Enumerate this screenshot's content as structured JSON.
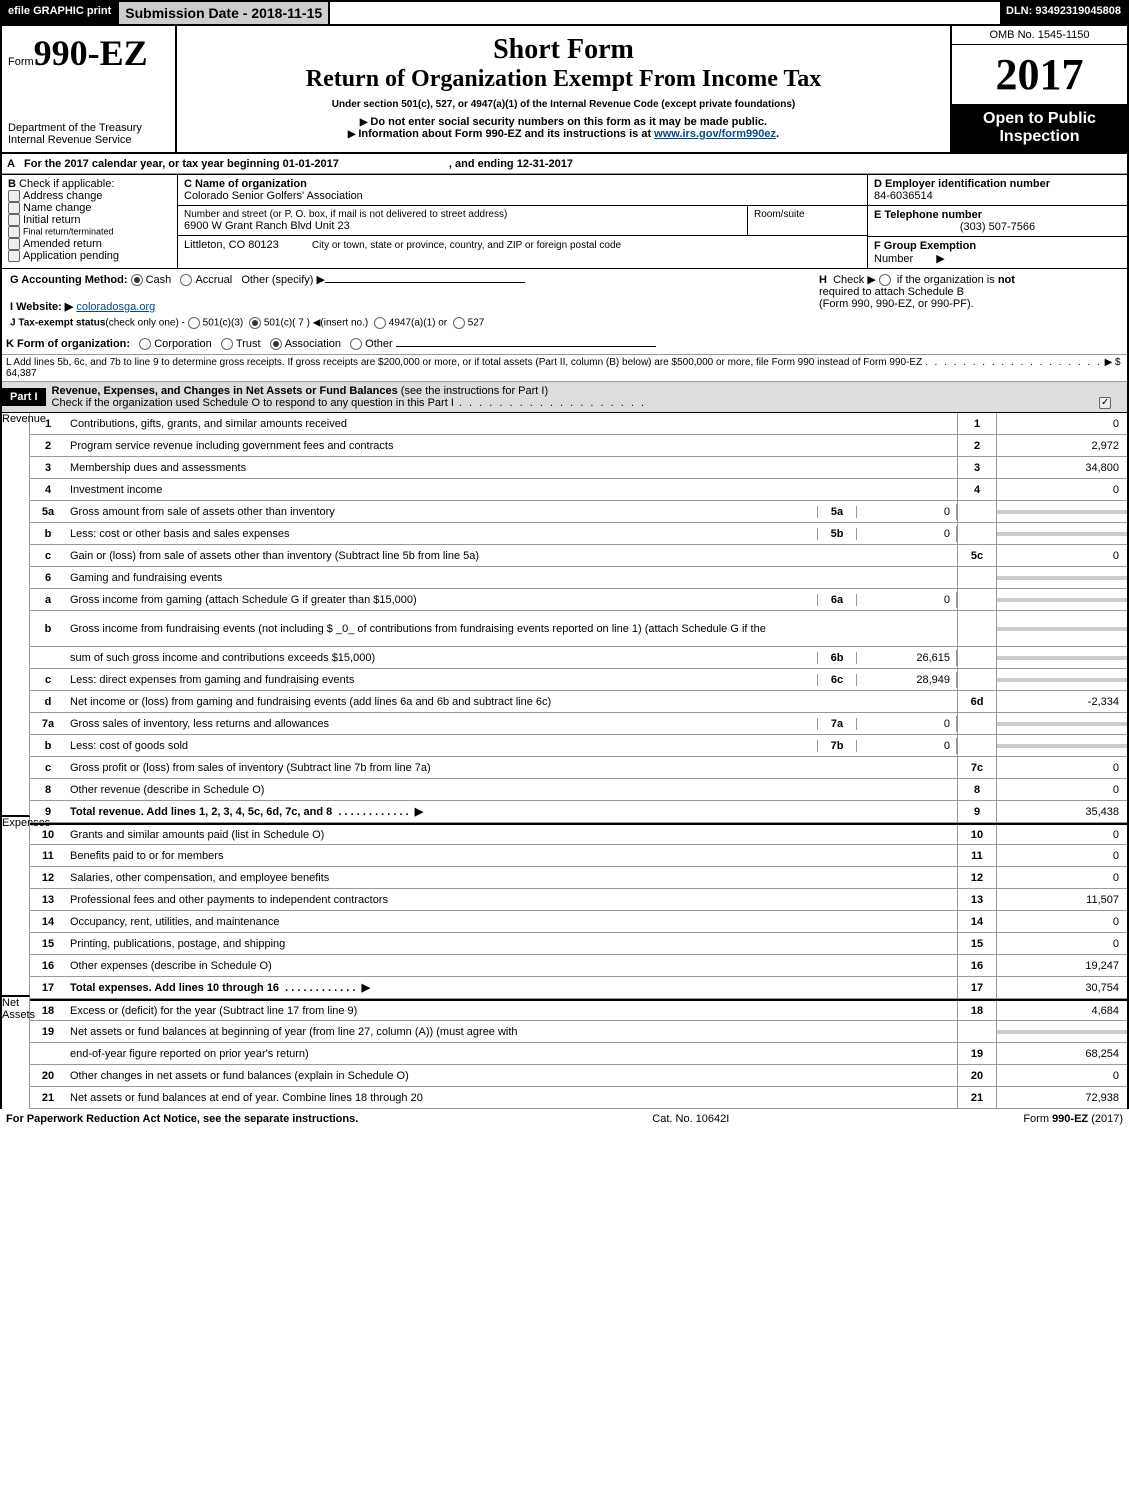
{
  "topbar": {
    "efile": "efile GRAPHIC print",
    "subdate": "Submission Date - 2018-11-15",
    "dln": "DLN: 93492319045808"
  },
  "header": {
    "form_prefix": "Form",
    "form_no": "990-EZ",
    "dept": "Department of the Treasury",
    "irs": "Internal Revenue Service",
    "short": "Short Form",
    "title": "Return of Organization Exempt From Income Tax",
    "sub1": "Under section 501(c), 527, or 4947(a)(1) of the Internal Revenue Code (except private foundations)",
    "sub2": "Do not enter social security numbers on this form as it may be made public.",
    "sub3": "Information about Form 990-EZ and its instructions is at ",
    "sub3_link": "www.irs.gov/form990ez",
    "omb": "OMB No. 1545-1150",
    "year": "2017",
    "open1": "Open to Public",
    "open2": "Inspection"
  },
  "A": {
    "txt": "For the 2017 calendar year, or tax year beginning 01-01-2017",
    "end": ", and ending 12-31-2017"
  },
  "B": {
    "label": "Check if applicable:",
    "opts": [
      "Address change",
      "Name change",
      "Initial return",
      "Final return/terminated",
      "Amended return",
      "Application pending"
    ]
  },
  "C": {
    "label": "C Name of organization",
    "name": "Colorado Senior Golfers' Association",
    "street_lbl": "Number and street (or P. O. box, if mail is not delivered to street address)",
    "street": "6900 W Grant Ranch Blvd Unit 23",
    "room": "Room/suite",
    "city_lbl": "City or town, state or province, country, and ZIP or foreign postal code",
    "city": "Littleton, CO   80123"
  },
  "D": {
    "label": "D Employer identification number",
    "val": "84-6036514"
  },
  "E": {
    "label": "E Telephone number",
    "val": "(303) 507-7566"
  },
  "F": {
    "label": "F Group Exemption",
    "label2": "Number",
    "arrow": "▶"
  },
  "G": {
    "label": "G Accounting Method:",
    "opts": [
      "Cash",
      "Accrual"
    ],
    "other": "Other (specify) ▶"
  },
  "H": {
    "txt1": "Check ▶",
    "txt2": "if the organization is",
    "not": "not",
    "txt3": "required to attach Schedule B",
    "txt4": "(Form 990, 990-EZ, or 990-PF)."
  },
  "I": {
    "label": "I Website: ▶",
    "val": "coloradosga.org"
  },
  "J": {
    "label": "J Tax-exempt status",
    "sub": "(check only one) -",
    "o1": "501(c)(3)",
    "o2": "501(c)( 7 )",
    "ins": "◀(insert no.)",
    "o3": "4947(a)(1) or",
    "o4": "527"
  },
  "K": {
    "label": "K Form of organization:",
    "opts": [
      "Corporation",
      "Trust",
      "Association",
      "Other"
    ]
  },
  "L": {
    "txt": "L Add lines 5b, 6c, and 7b to line 9 to determine gross receipts. If gross receipts are $200,000 or more, or if total assets (Part II, column (B) below) are $500,000 or more, file Form 990 instead of Form 990-EZ",
    "val": "▶ $ 64,387"
  },
  "part1": {
    "hdr": "Part I",
    "title": "Revenue, Expenses, and Changes in Net Assets or Fund Balances",
    "note": "(see the instructions for Part I)",
    "check": "Check if the organization used Schedule O to respond to any question in this Part I"
  },
  "sidelabels": {
    "rev": "Revenue",
    "exp": "Expenses",
    "net": "Net Assets"
  },
  "lines": [
    {
      "n": "1",
      "t": "Contributions, gifts, grants, and similar amounts received",
      "bn": "1",
      "bv": "0"
    },
    {
      "n": "2",
      "t": "Program service revenue including government fees and contracts",
      "bn": "2",
      "bv": "2,972"
    },
    {
      "n": "3",
      "t": "Membership dues and assessments",
      "bn": "3",
      "bv": "34,800"
    },
    {
      "n": "4",
      "t": "Investment income",
      "bn": "4",
      "bv": "0"
    },
    {
      "n": "5a",
      "t": "Gross amount from sale of assets other than inventory",
      "sc": "5a",
      "sv": "0",
      "grey": true
    },
    {
      "n": "b",
      "t": "Less: cost or other basis and sales expenses",
      "sc": "5b",
      "sv": "0",
      "grey": true
    },
    {
      "n": "c",
      "t": "Gain or (loss) from sale of assets other than inventory (Subtract line 5b from line 5a)",
      "bn": "5c",
      "bv": "0"
    },
    {
      "n": "6",
      "t": "Gaming and fundraising events",
      "grey": true,
      "noval": true
    },
    {
      "n": "a",
      "t": "Gross income from gaming (attach Schedule G if greater than $15,000)",
      "sc": "6a",
      "sv": "0",
      "grey": true
    },
    {
      "n": "b",
      "t": "Gross income from fundraising events (not including $ _0_            of contributions from fundraising events reported on line 1) (attach Schedule G if the",
      "grey": true,
      "noval": true,
      "tall": true
    },
    {
      "n": "",
      "t": "sum of such gross income and contributions exceeds $15,000)",
      "sc": "6b",
      "sv": "26,615",
      "grey": true
    },
    {
      "n": "c",
      "t": "Less: direct expenses from gaming and fundraising events",
      "sc": "6c",
      "sv": "28,949",
      "grey": true
    },
    {
      "n": "d",
      "t": "Net income or (loss) from gaming and fundraising events (add lines 6a and 6b and subtract line 6c)",
      "bn": "6d",
      "bv": "-2,334"
    },
    {
      "n": "7a",
      "t": "Gross sales of inventory, less returns and allowances",
      "sc": "7a",
      "sv": "0",
      "grey": true
    },
    {
      "n": "b",
      "t": "Less: cost of goods sold",
      "sc": "7b",
      "sv": "0",
      "grey": true
    },
    {
      "n": "c",
      "t": "Gross profit or (loss) from sales of inventory (Subtract line 7b from line 7a)",
      "bn": "7c",
      "bv": "0"
    },
    {
      "n": "8",
      "t": "Other revenue (describe in Schedule O)",
      "bn": "8",
      "bv": "0"
    },
    {
      "n": "9",
      "t": "Total revenue. Add lines 1, 2, 3, 4, 5c, 6d, 7c, and 8",
      "bn": "9",
      "bv": "35,438",
      "bold": true,
      "arrow": true
    },
    {
      "n": "10",
      "t": "Grants and similar amounts paid (list in Schedule O)",
      "bn": "10",
      "bv": "0",
      "sec": "exp"
    },
    {
      "n": "11",
      "t": "Benefits paid to or for members",
      "bn": "11",
      "bv": "0"
    },
    {
      "n": "12",
      "t": "Salaries, other compensation, and employee benefits",
      "bn": "12",
      "bv": "0"
    },
    {
      "n": "13",
      "t": "Professional fees and other payments to independent contractors",
      "bn": "13",
      "bv": "11,507"
    },
    {
      "n": "14",
      "t": "Occupancy, rent, utilities, and maintenance",
      "bn": "14",
      "bv": "0"
    },
    {
      "n": "15",
      "t": "Printing, publications, postage, and shipping",
      "bn": "15",
      "bv": "0"
    },
    {
      "n": "16",
      "t": "Other expenses (describe in Schedule O)",
      "bn": "16",
      "bv": "19,247"
    },
    {
      "n": "17",
      "t": "Total expenses. Add lines 10 through 16",
      "bn": "17",
      "bv": "30,754",
      "bold": true,
      "arrow": true
    },
    {
      "n": "18",
      "t": "Excess or (deficit) for the year (Subtract line 17 from line 9)",
      "bn": "18",
      "bv": "4,684",
      "sec": "net"
    },
    {
      "n": "19",
      "t": "Net assets or fund balances at beginning of year (from line 27, column (A)) (must agree with",
      "grey": true,
      "noval": true
    },
    {
      "n": "",
      "t": "end-of-year figure reported on prior year's return)",
      "bn": "19",
      "bv": "68,254"
    },
    {
      "n": "20",
      "t": "Other changes in net assets or fund balances (explain in Schedule O)",
      "bn": "20",
      "bv": "0"
    },
    {
      "n": "21",
      "t": "Net assets or fund balances at end of year. Combine lines 18 through 20",
      "bn": "21",
      "bv": "72,938"
    }
  ],
  "footer": {
    "l": "For Paperwork Reduction Act Notice, see the separate instructions.",
    "c": "Cat. No. 10642I",
    "r": "Form 990-EZ (2017)"
  }
}
